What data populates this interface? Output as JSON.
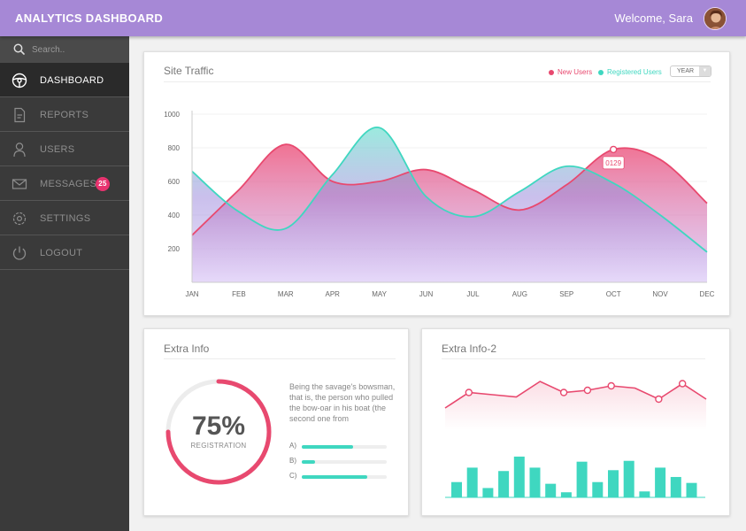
{
  "header": {
    "title": "ANALYTICS DASHBOARD",
    "welcome": "Welcome, Sara"
  },
  "sidebar": {
    "search_placeholder": "Search..",
    "items": [
      {
        "label": "DASHBOARD",
        "icon": "steering-wheel-icon",
        "active": true
      },
      {
        "label": "REPORTS",
        "icon": "document-icon"
      },
      {
        "label": "USERS",
        "icon": "user-icon"
      },
      {
        "label": "MESSAGES",
        "icon": "envelope-icon",
        "badge": "25"
      },
      {
        "label": "SETTINGS",
        "icon": "gear-icon"
      },
      {
        "label": "LOGOUT",
        "icon": "power-icon"
      }
    ]
  },
  "colors": {
    "accent": "#a688d6",
    "new_users": "#e8496f",
    "registered_users": "#3fd7c0",
    "badge": "#e8336f"
  },
  "site_traffic": {
    "title": "Site Traffic",
    "legend_new": "New Users",
    "legend_registered": "Registered Users",
    "period": "YEAR",
    "tooltip": "0129"
  },
  "extra_info": {
    "title": "Extra Info",
    "percent": "75%",
    "percent_value": 0.75,
    "percent_label": "REGISTRATION",
    "text": "Being the savage's bowsman, that is, the person who pulled the bow-oar in his boat (the second one from",
    "bars": [
      {
        "label": "A)",
        "value": 0.6
      },
      {
        "label": "B)",
        "value": 0.16
      },
      {
        "label": "C)",
        "value": 0.77
      }
    ]
  },
  "extra_info_2": {
    "title": "Extra Info-2"
  },
  "chart_data": [
    {
      "type": "area",
      "title": "Site Traffic",
      "categories": [
        "JAN",
        "FEB",
        "MAR",
        "APR",
        "MAY",
        "JUN",
        "JUL",
        "AUG",
        "SEP",
        "OCT",
        "NOV",
        "DEC"
      ],
      "y_ticks": [
        200,
        400,
        600,
        800,
        1000
      ],
      "ylim": [
        0,
        1000
      ],
      "series": [
        {
          "name": "New Users",
          "values": [
            280,
            550,
            820,
            600,
            600,
            670,
            550,
            430,
            580,
            790,
            730,
            470
          ]
        },
        {
          "name": "Registered Users",
          "values": [
            660,
            420,
            320,
            640,
            920,
            510,
            390,
            540,
            690,
            590,
            400,
            180
          ]
        }
      ],
      "legend": "top-right",
      "grid": true
    },
    {
      "type": "line",
      "values": [
        3.0,
        6.5,
        6.0,
        5.5,
        9.0,
        6.5,
        7.0,
        8.0,
        7.5,
        5.0,
        8.5,
        5.0
      ],
      "markers": [
        1,
        5,
        6,
        7,
        9,
        10
      ],
      "ylim": [
        0,
        10
      ]
    },
    {
      "type": "bar",
      "values": [
        18,
        35,
        11,
        31,
        48,
        35,
        16,
        6,
        42,
        18,
        32,
        43,
        7,
        35,
        24,
        17
      ],
      "ylim": [
        0,
        50
      ]
    }
  ]
}
